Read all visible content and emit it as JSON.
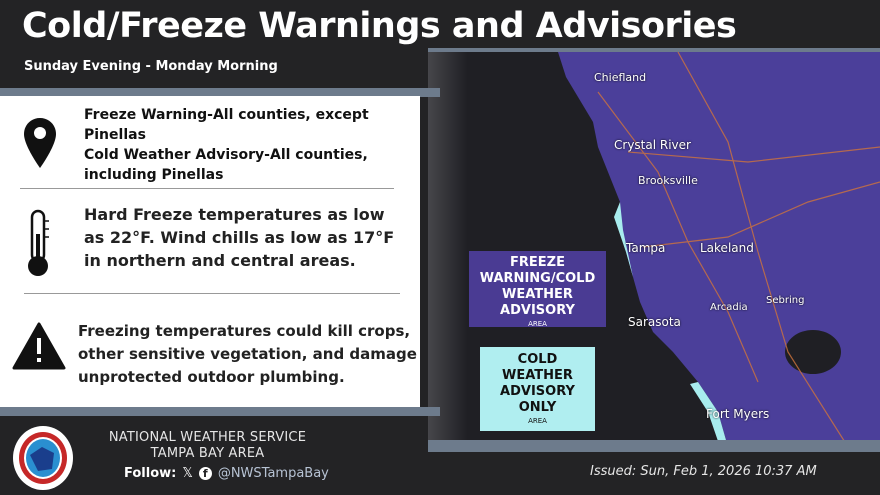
{
  "header": {
    "title": "Cold/Freeze Warnings and Advisories",
    "subtitle": "Sunday Evening - Monday Morning"
  },
  "items": [
    {
      "icon": "map-pin-icon",
      "text": "Freeze Warning-All counties, except Pinellas Cold Weather Advisory-All counties, including Pinellas",
      "line1": "Freeze Warning-All counties, except",
      "line2": "Pinellas",
      "line3": "Cold Weather Advisory-All counties,",
      "line4": "including Pinellas"
    },
    {
      "icon": "thermometer-icon",
      "line1": "Hard Freeze temperatures as low",
      "line2": "as 22°F. Wind chills as low as 17°F",
      "line3": "in northern and central areas."
    },
    {
      "icon": "warning-icon",
      "line1": "Freezing temperatures could kill crops,",
      "line2": "other sensitive vegetation, and damage",
      "line3": "unprotected outdoor plumbing."
    }
  ],
  "legend": [
    {
      "label": "FREEZE WARNING/COLD WEATHER ADVISORY",
      "lines": [
        "FREEZE",
        "WARNING/COLD",
        "WEATHER",
        "ADVISORY"
      ],
      "sub": "AREA",
      "color": "#4a3b93"
    },
    {
      "label": "COLD WEATHER ADVISORY ONLY",
      "lines": [
        "COLD",
        "WEATHER",
        "ADVISORY",
        "ONLY"
      ],
      "sub": "AREA",
      "color": "#b0eef0"
    }
  ],
  "map": {
    "cities": [
      "Chiefland",
      "Crystal River",
      "Brooksville",
      "Tampa",
      "Lakeland",
      "Sarasota",
      "Arcadia",
      "Sebring",
      "Fort Myers"
    ]
  },
  "footer": {
    "org_line1": "NATIONAL WEATHER SERVICE",
    "org_line2": "TAMPA BAY AREA",
    "follow_label": "Follow:",
    "handle": "@NWSTampaBay",
    "issued": "Issued: Sun, Feb 1, 2026 10:37 AM",
    "logo_text": "NATIONAL WEATHER SERVICE"
  }
}
